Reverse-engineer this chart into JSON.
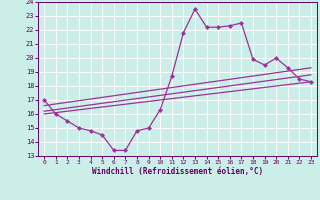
{
  "xlabel": "Windchill (Refroidissement éolien,°C)",
  "bg_color": "#cceee8",
  "line_color": "#993399",
  "spine_color": "#660066",
  "grid_color": "#ffffff",
  "xlim": [
    -0.5,
    23.5
  ],
  "ylim": [
    13,
    24
  ],
  "xticks": [
    0,
    1,
    2,
    3,
    4,
    5,
    6,
    7,
    8,
    9,
    10,
    11,
    12,
    13,
    14,
    15,
    16,
    17,
    18,
    19,
    20,
    21,
    22,
    23
  ],
  "yticks": [
    13,
    14,
    15,
    16,
    17,
    18,
    19,
    20,
    21,
    22,
    23,
    24
  ],
  "main_curve": {
    "x": [
      0,
      1,
      2,
      3,
      4,
      5,
      6,
      7,
      8,
      9,
      10,
      11,
      12,
      13,
      14,
      15,
      16,
      17,
      18,
      19,
      20,
      21,
      22,
      23
    ],
    "y": [
      17,
      16,
      15.5,
      15,
      14.8,
      14.5,
      13.4,
      13.4,
      14.8,
      15,
      16.3,
      18.7,
      21.8,
      23.5,
      22.2,
      22.2,
      22.3,
      22.5,
      19.9,
      19.5,
      20.0,
      19.3,
      18.5,
      18.3
    ]
  },
  "line1": {
    "x": [
      0,
      23
    ],
    "y": [
      16.0,
      18.3
    ]
  },
  "line2": {
    "x": [
      0,
      23
    ],
    "y": [
      16.2,
      18.8
    ]
  },
  "line3": {
    "x": [
      0,
      23
    ],
    "y": [
      16.6,
      19.3
    ]
  }
}
